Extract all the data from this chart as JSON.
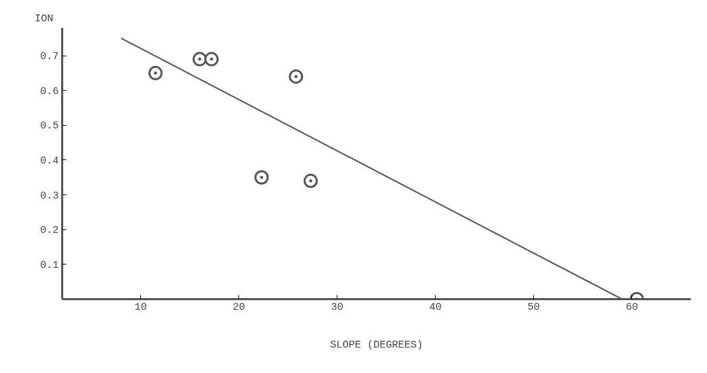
{
  "chart_data": {
    "type": "scatter",
    "ylabel": "ION",
    "xlabel": "SLOPE (DEGREES)",
    "xlim": [
      2,
      66
    ],
    "ylim": [
      0,
      0.78
    ],
    "xticks": [
      10,
      20,
      30,
      40,
      50,
      60
    ],
    "yticks": [
      0.1,
      0.2,
      0.3,
      0.4,
      0.5,
      0.6,
      0.7
    ],
    "grid": false,
    "marker": "circle",
    "series": [
      {
        "color": "#555555",
        "x": [
          11.5,
          16,
          17.2,
          22.3,
          25.8,
          27.3,
          60.5
        ],
        "values": [
          0.65,
          0.69,
          0.69,
          0.35,
          0.64,
          0.34,
          0.0
        ]
      },
      {
        "type": "line",
        "color": "#555555",
        "marker": "none",
        "x": [
          8,
          59
        ],
        "values": [
          0.75,
          0.0
        ]
      }
    ]
  }
}
